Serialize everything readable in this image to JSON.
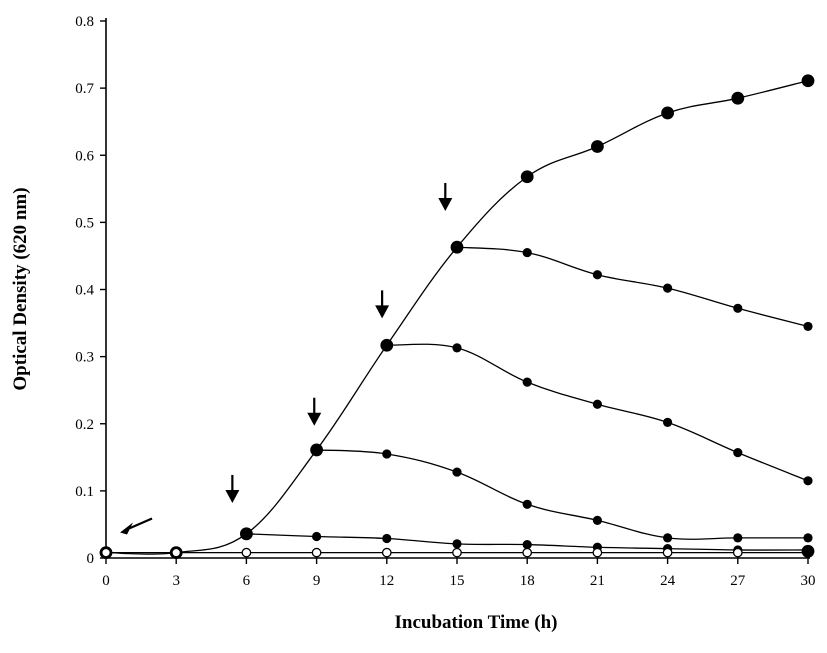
{
  "chart_data": {
    "type": "line",
    "title": "",
    "xlabel": "Incubation  Time (h)",
    "ylabel": "Optical  Density  (620 nm)",
    "xlim": [
      0,
      30
    ],
    "ylim": [
      0,
      0.8
    ],
    "xticks": [
      0,
      3,
      6,
      9,
      12,
      15,
      18,
      21,
      24,
      27,
      30
    ],
    "yticks": [
      0,
      0.1,
      0.2,
      0.3,
      0.4,
      0.5,
      0.6,
      0.7,
      0.8
    ],
    "legend": "none",
    "grid": false,
    "series": [
      {
        "marker": "filled-large",
        "x": [
          0,
          3,
          6,
          9,
          12,
          15,
          18,
          21,
          24,
          27,
          30
        ],
        "y": [
          0.008,
          0.008,
          0.036,
          0.161,
          0.317,
          0.463,
          0.568,
          0.613,
          0.663,
          0.685,
          0.711
        ]
      },
      {
        "marker": "filled-small",
        "x": [
          15,
          18,
          21,
          24,
          27,
          30
        ],
        "y": [
          0.463,
          0.455,
          0.422,
          0.402,
          0.372,
          0.345
        ]
      },
      {
        "marker": "filled-small",
        "x": [
          12,
          15,
          18,
          21,
          24,
          27,
          30
        ],
        "y": [
          0.317,
          0.313,
          0.262,
          0.229,
          0.202,
          0.157,
          0.115
        ]
      },
      {
        "marker": "filled-small",
        "x": [
          9,
          12,
          15,
          18,
          21,
          24,
          27,
          30
        ],
        "y": [
          0.161,
          0.155,
          0.128,
          0.08,
          0.056,
          0.03,
          0.03,
          0.03
        ]
      },
      {
        "marker": "filled-small",
        "x": [
          6,
          9,
          12,
          15,
          18,
          21,
          24,
          27,
          30
        ],
        "y": [
          0.036,
          0.032,
          0.029,
          0.021,
          0.02,
          0.016,
          0.014,
          0.012,
          0.012
        ]
      },
      {
        "marker": "open",
        "x": [
          0,
          3,
          6,
          9,
          12,
          15,
          18,
          21,
          24,
          27,
          30
        ],
        "y": [
          0.008,
          0.008,
          0.008,
          0.008,
          0.008,
          0.008,
          0.008,
          0.008,
          0.008,
          0.008,
          0.008
        ]
      },
      {
        "marker": "filled-large",
        "x": [
          30
        ],
        "y": [
          0.01
        ]
      }
    ],
    "annotations": [
      {
        "type": "arrow",
        "direction": "down-left",
        "x": 0.6,
        "y": 0.038
      },
      {
        "type": "arrow",
        "direction": "down",
        "x": 5.4,
        "y": 0.085
      },
      {
        "type": "arrow",
        "direction": "down",
        "x": 8.9,
        "y": 0.2
      },
      {
        "type": "arrow",
        "direction": "down",
        "x": 11.8,
        "y": 0.36
      },
      {
        "type": "arrow",
        "direction": "down",
        "x": 14.5,
        "y": 0.52
      }
    ]
  }
}
